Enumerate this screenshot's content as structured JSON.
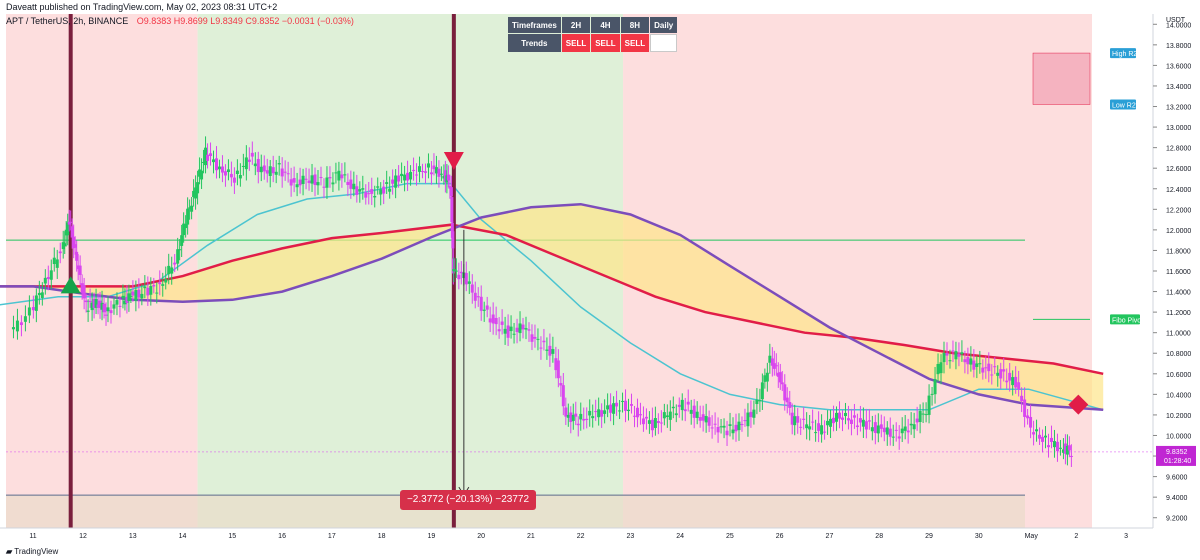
{
  "header": {
    "publisher": "Daveatt published on TradingView.com, May 02, 2023 08:31 UTC+2",
    "symbol": "APT / TetherUS, 2h, BINANCE",
    "ohlc": "O9.8383 H9.8699 L9.8349 C9.8352 −0.0031 (−0.03%)"
  },
  "timeframe_table": {
    "label_timeframes": "Timeframes",
    "label_trends": "Trends",
    "timeframes": [
      "2H",
      "4H",
      "8H",
      "Daily"
    ],
    "trends": [
      "SELL",
      "SELL",
      "SELL",
      ""
    ]
  },
  "measure_badge": "−2.3772 (−20.13%) −23772",
  "footer": {
    "brand": "TradingView"
  },
  "colors": {
    "bullish_bg": "#dff0d8",
    "bearish_bg": "#fddede",
    "up_candle": "#22c55e",
    "down_candle": "#d946ef",
    "slow_ma": "#e11d48",
    "curve": "#7c4dbb",
    "fast_ma": "#4cc4d0",
    "fill": "#fde68a",
    "pivot_line": "#22c55e",
    "signal_bar": "#7a1f3d"
  },
  "chart_data": {
    "type": "candlestick",
    "axis_unit": "USDT",
    "y_ticks": [
      9.2,
      9.4,
      9.6,
      9.8,
      10.0,
      10.2,
      10.4,
      10.6,
      10.8,
      11.0,
      11.2,
      11.4,
      11.6,
      11.8,
      12.0,
      12.2,
      12.4,
      12.6,
      12.8,
      13.0,
      13.2,
      13.4,
      13.6,
      13.8,
      14.0
    ],
    "ylim": [
      9.1,
      14.1
    ],
    "x_ticks": [
      "11",
      "12",
      "13",
      "14",
      "15",
      "16",
      "17",
      "18",
      "19",
      "20",
      "21",
      "22",
      "23",
      "24",
      "25",
      "26",
      "27",
      "28",
      "29",
      "30",
      "May",
      "2",
      "3"
    ],
    "last_price": "9.8352",
    "countdown": "01:28:40",
    "levels": [
      {
        "name": "High R2",
        "value": 13.72
      },
      {
        "name": "Low R2",
        "value": 13.22
      },
      {
        "name": "Fibo Pivot",
        "value": 11.13
      }
    ],
    "horizontal_line": 11.9,
    "lower_line": 9.42,
    "signals": [
      {
        "type": "buy",
        "day": 11.75,
        "price": 11.45
      },
      {
        "type": "sell",
        "day": 19.45,
        "price": 12.68
      },
      {
        "type": "sell-diamond",
        "day": 32.0,
        "price": 10.3
      }
    ],
    "measure": {
      "from_price": 12.0,
      "to_price": 9.42,
      "change": "−2.3772 (−20.13%) −23772"
    },
    "price_path": [
      [
        10.6,
        11.0
      ],
      [
        11.0,
        11.2
      ],
      [
        11.3,
        11.5
      ],
      [
        11.6,
        11.8
      ],
      [
        11.75,
        12.1
      ],
      [
        11.9,
        11.7
      ],
      [
        12.1,
        11.25
      ],
      [
        12.3,
        11.3
      ],
      [
        12.5,
        11.2
      ],
      [
        12.8,
        11.3
      ],
      [
        13.0,
        11.35
      ],
      [
        13.3,
        11.4
      ],
      [
        13.6,
        11.45
      ],
      [
        13.9,
        11.7
      ],
      [
        14.1,
        12.1
      ],
      [
        14.3,
        12.4
      ],
      [
        14.5,
        12.75
      ],
      [
        14.8,
        12.6
      ],
      [
        15.1,
        12.5
      ],
      [
        15.4,
        12.7
      ],
      [
        15.7,
        12.55
      ],
      [
        16.0,
        12.6
      ],
      [
        16.3,
        12.45
      ],
      [
        16.6,
        12.5
      ],
      [
        16.9,
        12.45
      ],
      [
        17.2,
        12.55
      ],
      [
        17.5,
        12.4
      ],
      [
        17.8,
        12.35
      ],
      [
        18.1,
        12.4
      ],
      [
        18.4,
        12.5
      ],
      [
        18.7,
        12.55
      ],
      [
        19.0,
        12.6
      ],
      [
        19.25,
        12.55
      ],
      [
        19.4,
        12.45
      ],
      [
        19.45,
        11.6
      ],
      [
        19.7,
        11.55
      ],
      [
        20.0,
        11.3
      ],
      [
        20.3,
        11.1
      ],
      [
        20.6,
        11.0
      ],
      [
        20.9,
        11.05
      ],
      [
        21.2,
        10.9
      ],
      [
        21.5,
        10.8
      ],
      [
        21.75,
        10.2
      ],
      [
        22.0,
        10.15
      ],
      [
        22.3,
        10.2
      ],
      [
        22.6,
        10.25
      ],
      [
        22.9,
        10.3
      ],
      [
        23.2,
        10.2
      ],
      [
        23.5,
        10.1
      ],
      [
        23.8,
        10.2
      ],
      [
        24.1,
        10.3
      ],
      [
        24.4,
        10.2
      ],
      [
        24.7,
        10.1
      ],
      [
        25.0,
        10.05
      ],
      [
        25.3,
        10.1
      ],
      [
        25.6,
        10.3
      ],
      [
        25.85,
        10.75
      ],
      [
        26.05,
        10.55
      ],
      [
        26.3,
        10.15
      ],
      [
        26.6,
        10.1
      ],
      [
        26.9,
        10.05
      ],
      [
        27.2,
        10.2
      ],
      [
        27.5,
        10.15
      ],
      [
        27.8,
        10.1
      ],
      [
        28.1,
        10.05
      ],
      [
        28.4,
        10.0
      ],
      [
        28.7,
        10.1
      ],
      [
        29.0,
        10.25
      ],
      [
        29.3,
        10.75
      ],
      [
        29.6,
        10.8
      ],
      [
        29.9,
        10.7
      ],
      [
        30.2,
        10.65
      ],
      [
        30.5,
        10.6
      ],
      [
        30.8,
        10.5
      ],
      [
        31.1,
        10.05
      ],
      [
        31.4,
        9.95
      ],
      [
        31.7,
        9.88
      ],
      [
        31.9,
        9.84
      ]
    ],
    "fast_ma_points": [
      [
        10.0,
        11.25
      ],
      [
        11.5,
        11.35
      ],
      [
        12.5,
        11.35
      ],
      [
        13.5,
        11.5
      ],
      [
        14.5,
        11.85
      ],
      [
        15.5,
        12.15
      ],
      [
        16.5,
        12.3
      ],
      [
        17.5,
        12.35
      ],
      [
        18.5,
        12.45
      ],
      [
        19.4,
        12.45
      ],
      [
        20.0,
        12.1
      ],
      [
        21.0,
        11.7
      ],
      [
        22.0,
        11.25
      ],
      [
        23.0,
        10.9
      ],
      [
        24.0,
        10.6
      ],
      [
        25.0,
        10.4
      ],
      [
        26.0,
        10.3
      ],
      [
        27.0,
        10.25
      ],
      [
        28.0,
        10.25
      ],
      [
        29.0,
        10.25
      ],
      [
        30.0,
        10.45
      ],
      [
        31.0,
        10.45
      ],
      [
        32.5,
        10.25
      ]
    ],
    "slow_ma_points": [
      [
        10.0,
        11.45
      ],
      [
        11.5,
        11.45
      ],
      [
        13.0,
        11.45
      ],
      [
        14.0,
        11.55
      ],
      [
        15.0,
        11.7
      ],
      [
        16.0,
        11.82
      ],
      [
        17.0,
        11.92
      ],
      [
        18.0,
        11.97
      ],
      [
        19.4,
        12.05
      ],
      [
        20.5,
        11.95
      ],
      [
        21.5,
        11.75
      ],
      [
        22.5,
        11.55
      ],
      [
        23.5,
        11.35
      ],
      [
        24.5,
        11.2
      ],
      [
        25.5,
        11.1
      ],
      [
        26.5,
        11.0
      ],
      [
        27.5,
        10.95
      ],
      [
        28.5,
        10.88
      ],
      [
        29.5,
        10.8
      ],
      [
        30.5,
        10.75
      ],
      [
        31.5,
        10.7
      ],
      [
        32.5,
        10.6
      ]
    ],
    "curve_points": [
      [
        10.0,
        11.45
      ],
      [
        11.0,
        11.45
      ],
      [
        12.0,
        11.38
      ],
      [
        13.0,
        11.32
      ],
      [
        14.0,
        11.3
      ],
      [
        15.0,
        11.32
      ],
      [
        16.0,
        11.4
      ],
      [
        17.0,
        11.55
      ],
      [
        18.0,
        11.72
      ],
      [
        19.0,
        11.93
      ],
      [
        20.0,
        12.12
      ],
      [
        21.0,
        12.22
      ],
      [
        22.0,
        12.25
      ],
      [
        23.0,
        12.15
      ],
      [
        24.0,
        11.95
      ],
      [
        25.0,
        11.65
      ],
      [
        26.0,
        11.35
      ],
      [
        27.0,
        11.05
      ],
      [
        28.0,
        10.8
      ],
      [
        29.0,
        10.55
      ],
      [
        30.0,
        10.4
      ],
      [
        31.0,
        10.3
      ],
      [
        32.5,
        10.25
      ]
    ],
    "background_zones": [
      {
        "from": 10.0,
        "to": 14.3,
        "trend": "bearish"
      },
      {
        "from": 14.3,
        "to": 22.85,
        "trend": "bullish"
      },
      {
        "from": 22.85,
        "to": 33.0,
        "trend": "bearish"
      }
    ],
    "signal_bars": [
      11.75,
      19.45
    ]
  }
}
